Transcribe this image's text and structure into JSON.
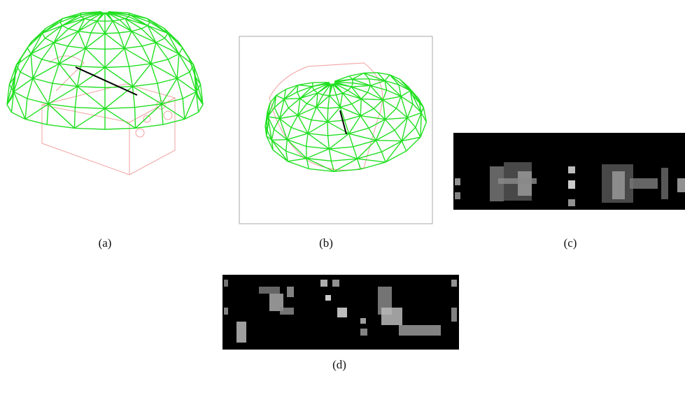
{
  "figure": {
    "subfigures": [
      {
        "label": "(a)"
      },
      {
        "label": "(b)"
      },
      {
        "label": "(c)"
      },
      {
        "label": "(d)"
      }
    ]
  }
}
